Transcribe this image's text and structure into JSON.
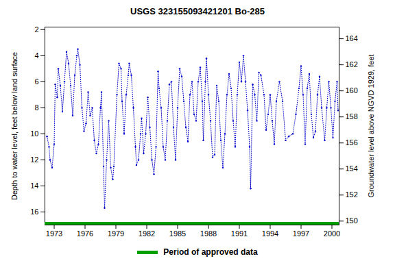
{
  "chart_data": {
    "type": "line",
    "title": "USGS 323155093421201 Bo-285",
    "ylabel": "Depth to water level, feet below land surface",
    "y2label": "Groundwater level above NGVD 1929, feet",
    "xlim": [
      1972.1,
      2000.7
    ],
    "xticks": [
      1973,
      1976,
      1979,
      1982,
      1985,
      1988,
      1991,
      1994,
      1997,
      2000
    ],
    "ylim": [
      1.8,
      17.0
    ],
    "yticks": [
      2,
      4,
      6,
      8,
      10,
      12,
      14,
      16
    ],
    "y2lim": [
      164.9,
      149.7
    ],
    "y2ticks": [
      150,
      152,
      154,
      156,
      158,
      160,
      162,
      164
    ],
    "grid": false,
    "legend": "bottom",
    "series": [
      {
        "color": "#0000cc",
        "line_style": "dotted",
        "marker": "dot",
        "x": [
          1972.3,
          1972.5,
          1972.6,
          1972.8,
          1973.0,
          1973.1,
          1973.3,
          1973.4,
          1973.6,
          1973.8,
          1974.0,
          1974.2,
          1974.4,
          1974.6,
          1974.8,
          1975.0,
          1975.2,
          1975.3,
          1975.5,
          1975.7,
          1975.9,
          1976.1,
          1976.3,
          1976.5,
          1976.7,
          1976.9,
          1977.1,
          1977.3,
          1977.5,
          1977.6,
          1977.8,
          1977.9,
          1978.1,
          1978.3,
          1978.5,
          1978.7,
          1978.8,
          1979.1,
          1979.3,
          1979.5,
          1979.6,
          1979.8,
          1980.0,
          1980.2,
          1980.3,
          1980.5,
          1980.7,
          1980.9,
          1981.0,
          1981.2,
          1981.4,
          1981.5,
          1981.7,
          1981.9,
          1982.1,
          1982.3,
          1982.5,
          1982.7,
          1982.9,
          1983.1,
          1983.2,
          1983.4,
          1983.6,
          1983.8,
          1984.0,
          1984.2,
          1984.4,
          1984.6,
          1984.8,
          1985.0,
          1985.2,
          1985.4,
          1985.6,
          1985.8,
          1986.0,
          1986.2,
          1986.4,
          1986.6,
          1986.8,
          1987.0,
          1987.2,
          1987.4,
          1987.5,
          1987.7,
          1987.8,
          1988.0,
          1988.2,
          1988.4,
          1988.6,
          1988.8,
          1989.0,
          1989.2,
          1989.4,
          1989.6,
          1989.8,
          1990.0,
          1990.2,
          1990.4,
          1990.6,
          1990.8,
          1991.0,
          1991.2,
          1991.4,
          1991.6,
          1991.8,
          1992.0,
          1992.1,
          1992.3,
          1992.5,
          1992.7,
          1992.9,
          1993.1,
          1993.4,
          1993.6,
          1993.8,
          1994.0,
          1994.2,
          1994.4,
          1994.6,
          1994.9,
          1995.2,
          1995.5,
          1995.8,
          1996.2,
          1996.5,
          1996.8,
          1997.0,
          1997.2,
          1997.4,
          1997.6,
          1997.8,
          1998.0,
          1998.2,
          1998.4,
          1998.6,
          1998.8,
          1999.0,
          1999.3,
          1999.5,
          1999.7,
          1999.9,
          2000.1,
          2000.3,
          2000.5,
          2000.6
        ],
        "values": [
          10.2,
          11.0,
          12.0,
          12.6,
          10.8,
          6.2,
          7.2,
          5.0,
          6.3,
          8.3,
          6.0,
          3.7,
          4.6,
          6.3,
          8.6,
          5.5,
          4.0,
          3.5,
          4.7,
          8.0,
          9.8,
          9.2,
          6.8,
          8.6,
          8.0,
          10.5,
          11.5,
          10.8,
          8.0,
          6.8,
          12.5,
          15.7,
          12.0,
          9.0,
          12.6,
          13.5,
          12.5,
          7.0,
          4.6,
          5.0,
          7.5,
          10.0,
          7.0,
          5.5,
          4.6,
          5.5,
          8.0,
          11.0,
          12.4,
          12.0,
          10.0,
          8.8,
          11.5,
          10.0,
          7.2,
          9.5,
          12.0,
          13.1,
          11.0,
          5.2,
          6.5,
          8.0,
          11.0,
          12.0,
          9.0,
          6.2,
          6.0,
          9.5,
          12.0,
          8.0,
          5.0,
          5.6,
          7.5,
          9.5,
          10.6,
          7.0,
          6.0,
          8.5,
          9.0,
          6.0,
          4.9,
          7.5,
          10.5,
          6.0,
          4.2,
          7.0,
          9.0,
          11.8,
          11.6,
          6.3,
          7.5,
          10.5,
          12.6,
          10.0,
          7.0,
          5.4,
          6.5,
          9.0,
          11.0,
          7.0,
          4.5,
          6.0,
          4.0,
          6.0,
          8.2,
          11.0,
          14.2,
          6.2,
          7.0,
          9.0,
          5.3,
          5.5,
          7.0,
          9.7,
          8.5,
          7.0,
          9.0,
          10.8,
          7.5,
          6.0,
          7.5,
          10.5,
          10.2,
          10.0,
          8.5,
          6.5,
          4.8,
          7.0,
          10.8,
          6.5,
          5.4,
          8.5,
          10.3,
          9.8,
          7.0,
          5.6,
          8.0,
          10.5,
          8.0,
          6.0,
          8.0,
          10.3,
          7.5,
          6.0,
          8.2
        ]
      },
      {
        "name": "Period of approved data",
        "color": "#00a000",
        "line_style": "solid",
        "x": [
          1972.2,
          2000.6
        ],
        "values": [
          16.9,
          16.9
        ]
      }
    ]
  }
}
